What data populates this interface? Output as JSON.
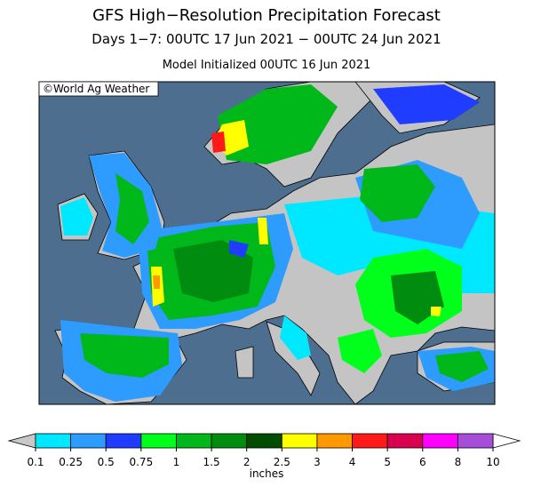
{
  "header": {
    "title": "GFS High−Resolution Precipitation Forecast",
    "subtitle": "Days 1−7: 00UTC 17 Jun 2021 − 00UTC 24 Jun 2021",
    "initialized": "Model Initialized 00UTC 16 Jun 2021"
  },
  "map": {
    "credit": "©World Ag Weather"
  },
  "legend": {
    "ticks": [
      0.1,
      0.25,
      0.5,
      0.75,
      1,
      1.5,
      2,
      2.5,
      3,
      4,
      5,
      6,
      8,
      10
    ],
    "colors": [
      "#00e8ff",
      "#2e9bff",
      "#1f3cff",
      "#00ff1a",
      "#00b81a",
      "#008c0e",
      "#004d00",
      "#ffff00",
      "#ff9900",
      "#ff1a1a",
      "#d9004f",
      "#ff00ff",
      "#a64dd9"
    ],
    "below_color": "#c8c8c8",
    "above_color": "#ffffff",
    "unit": "inches"
  }
}
